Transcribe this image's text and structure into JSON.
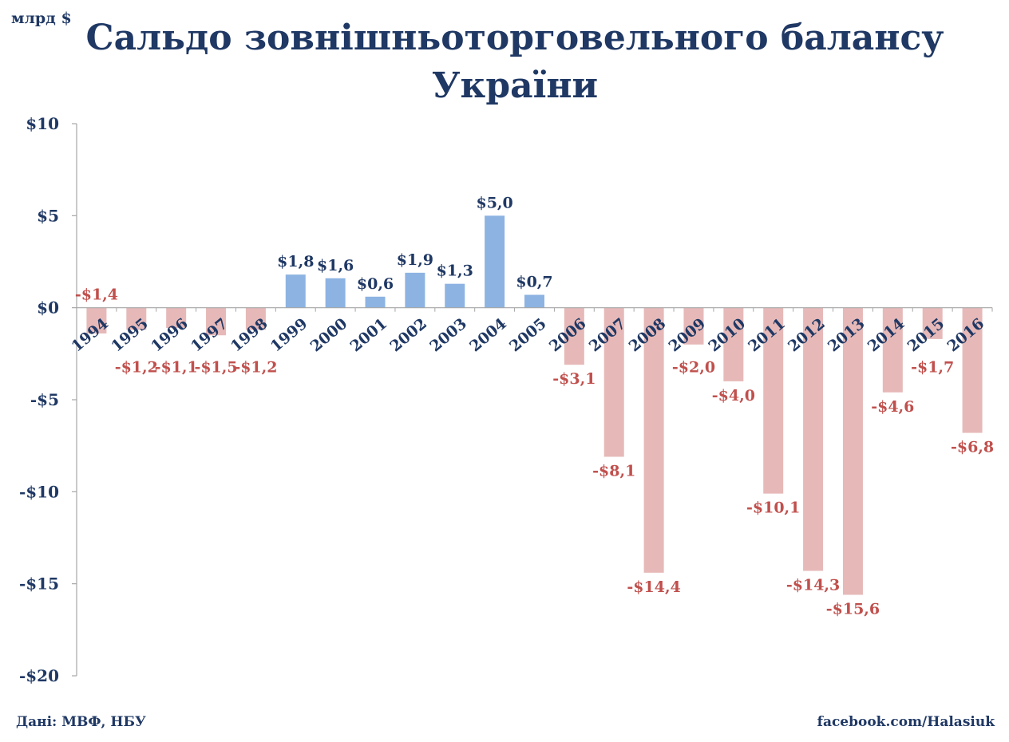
{
  "unit_label": "млрд $",
  "title_line1": "Сальдо зовнішньоторговельного  балансу",
  "title_line2": "України",
  "source": "Дані: МВФ, НБУ",
  "credit": "facebook.com/Halasiuk",
  "colors": {
    "positive_bar": "#8db3e2",
    "negative_bar": "#e6b9b8",
    "positive_label": "#1f3864",
    "negative_label": "#c0504d",
    "text": "#1f3864",
    "axis": "#a6a6a6"
  },
  "chart_data": {
    "type": "bar",
    "title": "Сальдо зовнішньоторговельного  балансу України",
    "ylabel": "млрд $",
    "xlabel": "",
    "ylim": [
      -20,
      10
    ],
    "yticks": [
      10,
      5,
      0,
      -5,
      -10,
      -15,
      -20
    ],
    "ytick_labels": [
      "$10",
      "$5",
      "$0",
      "-$5",
      "-$10",
      "-$15",
      "-$20"
    ],
    "grid": false,
    "categories": [
      "1994",
      "1995",
      "1996",
      "1997",
      "1998",
      "1999",
      "2000",
      "2001",
      "2002",
      "2003",
      "2004",
      "2005",
      "2006",
      "2007",
      "2008",
      "2009",
      "2010",
      "2011",
      "2012",
      "2013",
      "2014",
      "2015",
      "2016"
    ],
    "values": [
      -1.4,
      -1.2,
      -1.1,
      -1.5,
      -1.2,
      1.8,
      1.6,
      0.6,
      1.9,
      1.3,
      5.0,
      0.7,
      -3.1,
      -8.1,
      -14.4,
      -2.0,
      -4.0,
      -10.1,
      -14.3,
      -15.6,
      -4.6,
      -1.7,
      -6.8
    ],
    "data_labels": [
      "-$1,4",
      "-$1,2",
      "-$1,1",
      "-$1,5",
      "-$1,2",
      "$1,8",
      "$1,6",
      "$0,6",
      "$1,9",
      "$1,3",
      "$5,0",
      "$0,7",
      "-$3,1",
      "-$8,1",
      "-$14,4",
      "-$2,0",
      "-$4,0",
      "-$10,1",
      "-$14,3",
      "-$15,6",
      "-$4,6",
      "-$1,7",
      "-$6,8"
    ]
  }
}
